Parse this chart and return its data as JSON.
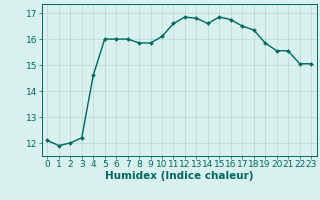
{
  "x": [
    0,
    1,
    2,
    3,
    4,
    5,
    6,
    7,
    8,
    9,
    10,
    11,
    12,
    13,
    14,
    15,
    16,
    17,
    18,
    19,
    20,
    21,
    22,
    23
  ],
  "y": [
    12.1,
    11.9,
    12.0,
    12.2,
    14.6,
    16.0,
    16.0,
    16.0,
    15.85,
    15.85,
    16.1,
    16.6,
    16.85,
    16.8,
    16.6,
    16.85,
    16.75,
    16.5,
    16.35,
    15.85,
    15.55,
    15.55,
    15.05,
    15.05
  ],
  "title": "",
  "xlabel": "Humidex (Indice chaleur)",
  "ylabel": "",
  "xlim": [
    -0.5,
    23.5
  ],
  "ylim": [
    11.5,
    17.35
  ],
  "yticks": [
    12,
    13,
    14,
    15,
    16,
    17
  ],
  "xticks": [
    0,
    1,
    2,
    3,
    4,
    5,
    6,
    7,
    8,
    9,
    10,
    11,
    12,
    13,
    14,
    15,
    16,
    17,
    18,
    19,
    20,
    21,
    22,
    23
  ],
  "line_color": "#006860",
  "marker_color": "#006860",
  "bg_color": "#d8f0ee",
  "grid_color": "#b8d8d4",
  "axis_color": "#006860",
  "tick_label_color": "#006860",
  "xlabel_color": "#006860",
  "tick_font_size": 6.5,
  "xlabel_font_size": 7.5,
  "marker_size": 2.0,
  "line_width": 1.0
}
